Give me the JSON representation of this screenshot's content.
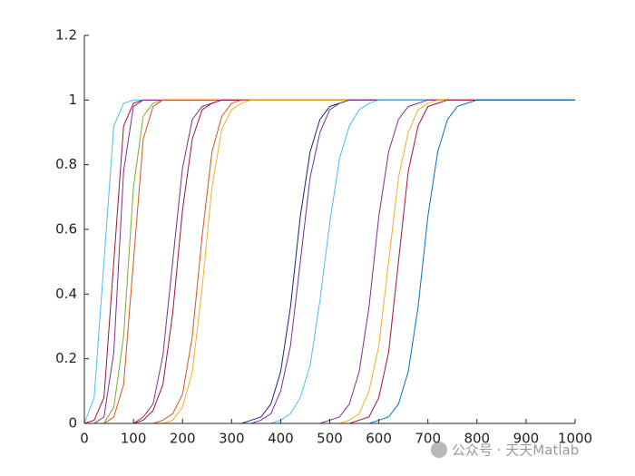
{
  "chart_data": {
    "type": "line",
    "x": [
      0,
      20,
      40,
      60,
      80,
      100,
      120,
      140,
      160,
      180,
      200,
      220,
      240,
      260,
      280,
      300,
      320,
      340,
      360,
      380,
      400,
      420,
      440,
      460,
      480,
      500,
      520,
      540,
      560,
      580,
      600,
      620,
      640,
      660,
      680,
      700,
      720,
      740,
      760,
      780,
      800,
      820,
      840,
      860,
      880,
      900,
      920,
      940,
      960,
      980,
      1000
    ],
    "series": [
      {
        "color": "#4dbeee",
        "values": [
          0,
          0.08,
          0.5,
          0.92,
          0.99,
          1,
          1,
          1,
          1,
          1,
          1,
          1,
          1,
          1,
          1,
          1,
          1,
          1,
          1,
          1,
          1,
          1,
          1,
          1,
          1,
          1,
          1,
          1,
          1,
          1,
          1,
          1,
          1,
          1,
          1,
          1,
          1,
          1,
          1,
          1,
          1,
          1,
          1,
          1,
          1,
          1,
          1,
          1,
          1,
          1,
          1
        ]
      },
      {
        "color": "#a2142f",
        "values": [
          0,
          0.01,
          0.08,
          0.5,
          0.92,
          0.99,
          1,
          1,
          1,
          1,
          1,
          1,
          1,
          1,
          1,
          1,
          1,
          1,
          1,
          1,
          1,
          1,
          1,
          1,
          1,
          1,
          1,
          1,
          1,
          1,
          1,
          1,
          1,
          1,
          1,
          1,
          1,
          1,
          1,
          1,
          1,
          1,
          1,
          1,
          1,
          1,
          1,
          1,
          1,
          1,
          1
        ]
      },
      {
        "color": "#7e2f8e",
        "values": [
          0,
          0,
          0.02,
          0.22,
          0.78,
          0.98,
          1,
          1,
          1,
          1,
          1,
          1,
          1,
          1,
          1,
          1,
          1,
          1,
          1,
          1,
          1,
          1,
          1,
          1,
          1,
          1,
          1,
          1,
          1,
          1,
          1,
          1,
          1,
          1,
          1,
          1,
          1,
          1,
          1,
          1,
          1,
          1,
          1,
          1,
          1,
          1,
          1,
          1,
          1,
          1,
          1
        ]
      },
      {
        "color": "#77ac30",
        "values": [
          0,
          0,
          0,
          0.05,
          0.27,
          0.73,
          0.95,
          0.99,
          1,
          1,
          1,
          1,
          1,
          1,
          1,
          1,
          1,
          1,
          1,
          1,
          1,
          1,
          1,
          1,
          1,
          1,
          1,
          1,
          1,
          1,
          1,
          1,
          1,
          1,
          1,
          1,
          1,
          1,
          1,
          1,
          1,
          1,
          1,
          1,
          1,
          1,
          1,
          1,
          1,
          1,
          1
        ]
      },
      {
        "color": "#d95319",
        "values": [
          0,
          0,
          0,
          0.02,
          0.12,
          0.5,
          0.88,
          0.98,
          1,
          1,
          1,
          1,
          1,
          1,
          1,
          1,
          1,
          1,
          1,
          1,
          1,
          1,
          1,
          1,
          1,
          1,
          1,
          1,
          1,
          1,
          1,
          1,
          1,
          1,
          1,
          1,
          1,
          1,
          1,
          1,
          1,
          1,
          1,
          1,
          1,
          1,
          1,
          1,
          1,
          1,
          1
        ]
      },
      {
        "color": "#7e2f8e",
        "values": [
          0,
          0,
          0,
          0,
          0,
          0,
          0.02,
          0.06,
          0.21,
          0.5,
          0.79,
          0.94,
          0.98,
          0.99,
          1,
          1,
          1,
          1,
          1,
          1,
          1,
          1,
          1,
          1,
          1,
          1,
          1,
          1,
          1,
          1,
          1,
          1,
          1,
          1,
          1,
          1,
          1,
          1,
          1,
          1,
          1,
          1,
          1,
          1,
          1,
          1,
          1,
          1,
          1,
          1,
          1
        ]
      },
      {
        "color": "#a2142f",
        "values": [
          0,
          0,
          0,
          0,
          0,
          0,
          0.01,
          0.04,
          0.12,
          0.34,
          0.66,
          0.88,
          0.97,
          0.99,
          1,
          1,
          1,
          1,
          1,
          1,
          1,
          1,
          1,
          1,
          1,
          1,
          1,
          1,
          1,
          1,
          1,
          1,
          1,
          1,
          1,
          1,
          1,
          1,
          1,
          1,
          1,
          1,
          1,
          1,
          1,
          1,
          1,
          1,
          1,
          1,
          1
        ]
      },
      {
        "color": "#d95319",
        "values": [
          0,
          0,
          0,
          0,
          0,
          0,
          0,
          0,
          0.01,
          0.03,
          0.09,
          0.27,
          0.58,
          0.84,
          0.95,
          0.99,
          1,
          1,
          1,
          1,
          1,
          1,
          1,
          1,
          1,
          1,
          1,
          1,
          1,
          1,
          1,
          1,
          1,
          1,
          1,
          1,
          1,
          1,
          1,
          1,
          1,
          1,
          1,
          1,
          1,
          1,
          1,
          1,
          1,
          1,
          1
        ]
      },
      {
        "color": "#edb120",
        "values": [
          0,
          0,
          0,
          0,
          0,
          0,
          0,
          0,
          0,
          0.01,
          0.05,
          0.16,
          0.42,
          0.73,
          0.91,
          0.97,
          0.99,
          1,
          1,
          1,
          1,
          1,
          1,
          1,
          1,
          1,
          1,
          1,
          1,
          1,
          1,
          1,
          1,
          1,
          1,
          1,
          1,
          1,
          1,
          1,
          1,
          1,
          1,
          1,
          1,
          1,
          1,
          1,
          1,
          1,
          1
        ]
      },
      {
        "color": "#1a237e",
        "values": [
          0,
          0,
          0,
          0,
          0,
          0,
          0,
          0,
          0,
          0,
          0,
          0,
          0,
          0,
          0,
          0,
          0,
          0.01,
          0.02,
          0.06,
          0.16,
          0.36,
          0.64,
          0.84,
          0.94,
          0.98,
          0.99,
          1,
          1,
          1,
          1,
          1,
          1,
          1,
          1,
          1,
          1,
          1,
          1,
          1,
          1,
          1,
          1,
          1,
          1,
          1,
          1,
          1,
          1,
          1,
          1
        ]
      },
      {
        "color": "#7e2f8e",
        "values": [
          0,
          0,
          0,
          0,
          0,
          0,
          0,
          0,
          0,
          0,
          0,
          0,
          0,
          0,
          0,
          0,
          0,
          0,
          0.01,
          0.03,
          0.1,
          0.24,
          0.5,
          0.76,
          0.9,
          0.97,
          0.99,
          1,
          1,
          1,
          1,
          1,
          1,
          1,
          1,
          1,
          1,
          1,
          1,
          1,
          1,
          1,
          1,
          1,
          1,
          1,
          1,
          1,
          1,
          1,
          1
        ]
      },
      {
        "color": "#4dbeee",
        "values": [
          0,
          0,
          0,
          0,
          0,
          0,
          0,
          0,
          0,
          0,
          0,
          0,
          0,
          0,
          0,
          0,
          0,
          0,
          0,
          0,
          0.01,
          0.03,
          0.08,
          0.18,
          0.38,
          0.62,
          0.82,
          0.92,
          0.97,
          0.99,
          1,
          1,
          1,
          1,
          1,
          1,
          1,
          1,
          1,
          1,
          1,
          1,
          1,
          1,
          1,
          1,
          1,
          1,
          1,
          1,
          1
        ]
      },
      {
        "color": "#7e2f8e",
        "values": [
          0,
          0,
          0,
          0,
          0,
          0,
          0,
          0,
          0,
          0,
          0,
          0,
          0,
          0,
          0,
          0,
          0,
          0,
          0,
          0,
          0,
          0,
          0,
          0,
          0,
          0.01,
          0.02,
          0.06,
          0.16,
          0.36,
          0.64,
          0.84,
          0.94,
          0.98,
          0.99,
          1,
          1,
          1,
          1,
          1,
          1,
          1,
          1,
          1,
          1,
          1,
          1,
          1,
          1,
          1,
          1
        ]
      },
      {
        "color": "#edb120",
        "values": [
          0,
          0,
          0,
          0,
          0,
          0,
          0,
          0,
          0,
          0,
          0,
          0,
          0,
          0,
          0,
          0,
          0,
          0,
          0,
          0,
          0,
          0,
          0,
          0,
          0,
          0,
          0,
          0.01,
          0.03,
          0.1,
          0.24,
          0.5,
          0.76,
          0.9,
          0.97,
          0.99,
          1,
          1,
          1,
          1,
          1,
          1,
          1,
          1,
          1,
          1,
          1,
          1,
          1,
          1,
          1
        ]
      },
      {
        "color": "#a2142f",
        "values": [
          0,
          0,
          0,
          0,
          0,
          0,
          0,
          0,
          0,
          0,
          0,
          0,
          0,
          0,
          0,
          0,
          0,
          0,
          0,
          0,
          0,
          0,
          0,
          0,
          0,
          0,
          0,
          0,
          0.01,
          0.02,
          0.08,
          0.22,
          0.5,
          0.78,
          0.92,
          0.98,
          0.99,
          1,
          1,
          1,
          1,
          1,
          1,
          1,
          1,
          1,
          1,
          1,
          1,
          1,
          1
        ]
      },
      {
        "color": "#0072bd",
        "values": [
          0,
          0,
          0,
          0,
          0,
          0,
          0,
          0,
          0,
          0,
          0,
          0,
          0,
          0,
          0,
          0,
          0,
          0,
          0,
          0,
          0,
          0,
          0,
          0,
          0,
          0,
          0,
          0,
          0,
          0,
          0.01,
          0.02,
          0.06,
          0.16,
          0.36,
          0.64,
          0.84,
          0.94,
          0.98,
          0.99,
          1,
          1,
          1,
          1,
          1,
          1,
          1,
          1,
          1,
          1,
          1
        ]
      }
    ],
    "xlim": [
      0,
      1000
    ],
    "ylim": [
      0,
      1.2
    ],
    "xticks": [
      0,
      100,
      200,
      300,
      400,
      500,
      600,
      700,
      800,
      900,
      1000
    ],
    "yticks": [
      0,
      0.2,
      0.4,
      0.6,
      0.8,
      1,
      1.2
    ],
    "watermark": "公众号 · 天天Matlab"
  }
}
